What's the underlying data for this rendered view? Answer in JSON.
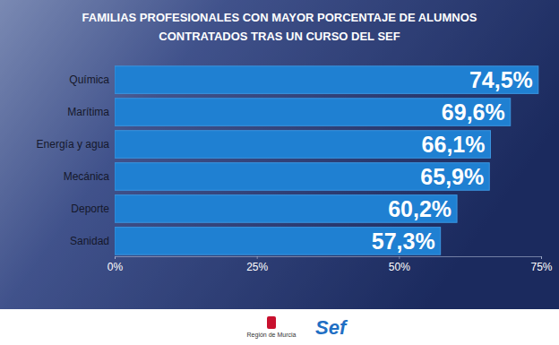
{
  "chart_data": {
    "type": "bar",
    "orientation": "horizontal",
    "title": "FAMILIAS PROFESIONALES CON MAYOR PORCENTAJE DE ALUMNOS\nCONTRATADOS TRAS UN CURSO DEL SEF",
    "categories": [
      "Química",
      "Marítima",
      "Energía y agua",
      "Mecánica",
      "Deporte",
      "Sanidad"
    ],
    "values": [
      74.5,
      69.6,
      66.1,
      65.9,
      60.2,
      57.3
    ],
    "value_labels": [
      "74,5%",
      "69,6%",
      "66,1%",
      "65,9%",
      "60,2%",
      "57,3%"
    ],
    "data_labels": true,
    "color": "#1f80d2",
    "xlim": [
      0,
      75
    ],
    "xticks": [
      {
        "value": 0,
        "label": "0%"
      },
      {
        "value": 25,
        "label": "25%"
      },
      {
        "value": 50,
        "label": "50%"
      },
      {
        "value": 75,
        "label": "75%"
      }
    ],
    "grid": false,
    "annotations": [
      "Región de Murcia",
      "Sef"
    ]
  }
}
